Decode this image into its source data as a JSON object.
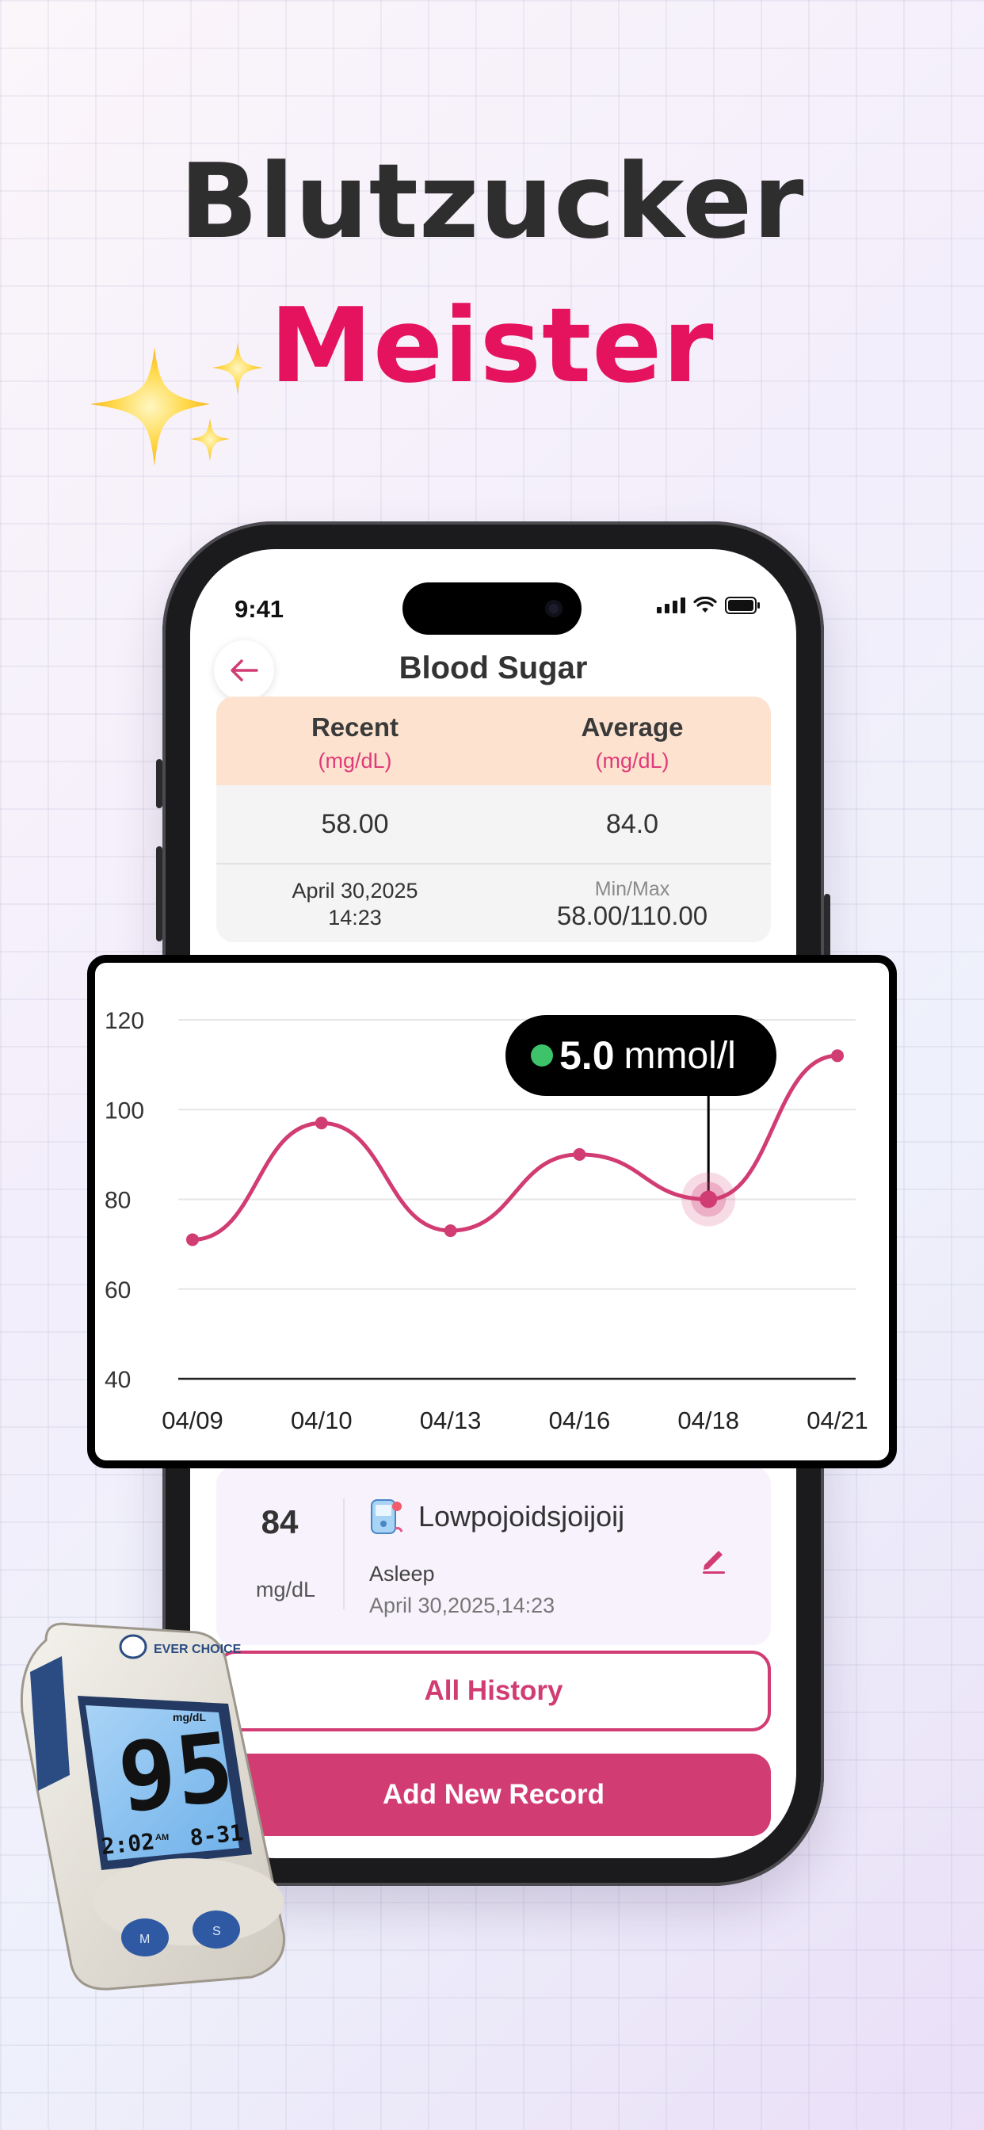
{
  "headline": {
    "line1": "Blutzucker",
    "line2": "Meister"
  },
  "status_bar": {
    "time": "9:41"
  },
  "screen": {
    "title": "Blood Sugar",
    "stats": {
      "recent_label": "Recent",
      "recent_unit": "(mg/dL)",
      "average_label": "Average",
      "average_unit": "(mg/dL)",
      "recent_value": "58.00",
      "average_value": "84.0",
      "recent_date": "April 30,2025",
      "recent_time": "14:23",
      "minmax_label": "Min/Max",
      "minmax_value": "58.00/110.00"
    },
    "record": {
      "value": "84",
      "unit": "mg/dL",
      "name": "Lowpojoidsjoijoij",
      "tag": "Asleep",
      "datetime": "April 30,2025,14:23"
    },
    "buttons": {
      "history": "All History",
      "add": "Add New Record"
    }
  },
  "chart_tooltip": {
    "value": "5.0",
    "unit": "mmol/l"
  },
  "chart_data": {
    "type": "line",
    "categories": [
      "04/09",
      "04/10",
      "04/13",
      "04/16",
      "04/18",
      "04/21"
    ],
    "values": [
      71,
      97,
      73,
      90,
      80,
      112
    ],
    "ylim": [
      40,
      120
    ],
    "yticks": [
      40,
      60,
      80,
      100,
      120
    ],
    "highlight_index": 4,
    "grid": true,
    "line_color": "#d13c73"
  },
  "meter_display": {
    "brand": "EVER CHOICE",
    "reading": "95",
    "unit": "mg/dL",
    "time": "2:02",
    "ampm": "AM",
    "date": "8-31",
    "btn_m": "M",
    "btn_s": "S"
  },
  "colors": {
    "accent": "#d13c73",
    "headline_pink": "#e5135d",
    "stats_header": "#fde3cf"
  }
}
